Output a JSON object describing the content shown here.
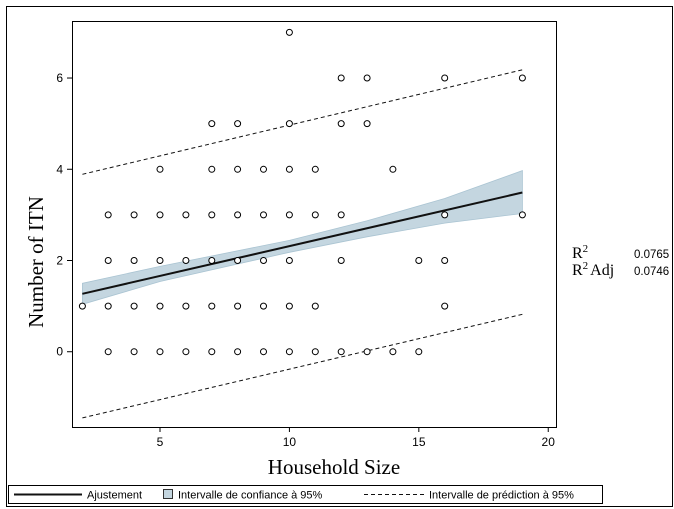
{
  "chart_data": {
    "type": "scatter",
    "xlabel": "Household Size",
    "ylabel": "Number of ITN",
    "xlim": [
      1.6,
      20.3
    ],
    "ylim": [
      -1.65,
      7.25
    ],
    "xticks": [
      5,
      10,
      15,
      20
    ],
    "yticks": [
      0,
      2,
      4,
      6
    ],
    "grid": false,
    "legend_position": "bottom",
    "points": [
      [
        2,
        1
      ],
      [
        3,
        0
      ],
      [
        3,
        1
      ],
      [
        3,
        2
      ],
      [
        3,
        3
      ],
      [
        4,
        0
      ],
      [
        4,
        1
      ],
      [
        4,
        2
      ],
      [
        4,
        3
      ],
      [
        5,
        0
      ],
      [
        5,
        1
      ],
      [
        5,
        2
      ],
      [
        5,
        3
      ],
      [
        5,
        4
      ],
      [
        6,
        0
      ],
      [
        6,
        1
      ],
      [
        6,
        2
      ],
      [
        6,
        3
      ],
      [
        7,
        0
      ],
      [
        7,
        1
      ],
      [
        7,
        2
      ],
      [
        7,
        3
      ],
      [
        7,
        4
      ],
      [
        7,
        5
      ],
      [
        8,
        0
      ],
      [
        8,
        1
      ],
      [
        8,
        2
      ],
      [
        8,
        3
      ],
      [
        8,
        4
      ],
      [
        8,
        5
      ],
      [
        9,
        0
      ],
      [
        9,
        1
      ],
      [
        9,
        2
      ],
      [
        9,
        3
      ],
      [
        9,
        4
      ],
      [
        10,
        0
      ],
      [
        10,
        1
      ],
      [
        10,
        2
      ],
      [
        10,
        3
      ],
      [
        10,
        4
      ],
      [
        10,
        5
      ],
      [
        10,
        7
      ],
      [
        11,
        0
      ],
      [
        11,
        1
      ],
      [
        11,
        3
      ],
      [
        11,
        4
      ],
      [
        12,
        0
      ],
      [
        12,
        2
      ],
      [
        12,
        3
      ],
      [
        12,
        5
      ],
      [
        12,
        6
      ],
      [
        13,
        0
      ],
      [
        13,
        5
      ],
      [
        13,
        6
      ],
      [
        14,
        0
      ],
      [
        14,
        4
      ],
      [
        15,
        0
      ],
      [
        15,
        2
      ],
      [
        16,
        1
      ],
      [
        16,
        2
      ],
      [
        16,
        3
      ],
      [
        16,
        6
      ],
      [
        19,
        3
      ],
      [
        19,
        6
      ]
    ],
    "fit": {
      "x": [
        2,
        19
      ],
      "y": [
        1.27,
        3.49
      ]
    },
    "confidence_band": {
      "x": [
        2,
        5,
        10,
        13,
        16,
        19
      ],
      "lower": [
        1.04,
        1.54,
        2.18,
        2.52,
        2.82,
        3.03
      ],
      "upper": [
        1.5,
        1.87,
        2.44,
        2.87,
        3.36,
        3.97
      ]
    },
    "prediction_interval": {
      "x": [
        2,
        19
      ],
      "lower": [
        -1.45,
        0.82
      ],
      "upper": [
        3.89,
        6.18
      ]
    },
    "stats": {
      "r2_label": "R",
      "r2_sup": "2",
      "r2_value": "0.0765",
      "r2adj_label": "Adj",
      "r2adj_value": "0.0746"
    },
    "legend": {
      "fit": "Ajustement",
      "ci": "Intervalle de confiance à 95%",
      "pi": "Intervalle de prédiction à 95%"
    },
    "colors": {
      "band": "#c4d6e0",
      "band_edge": "#aac4d2",
      "line": "#111111"
    }
  }
}
